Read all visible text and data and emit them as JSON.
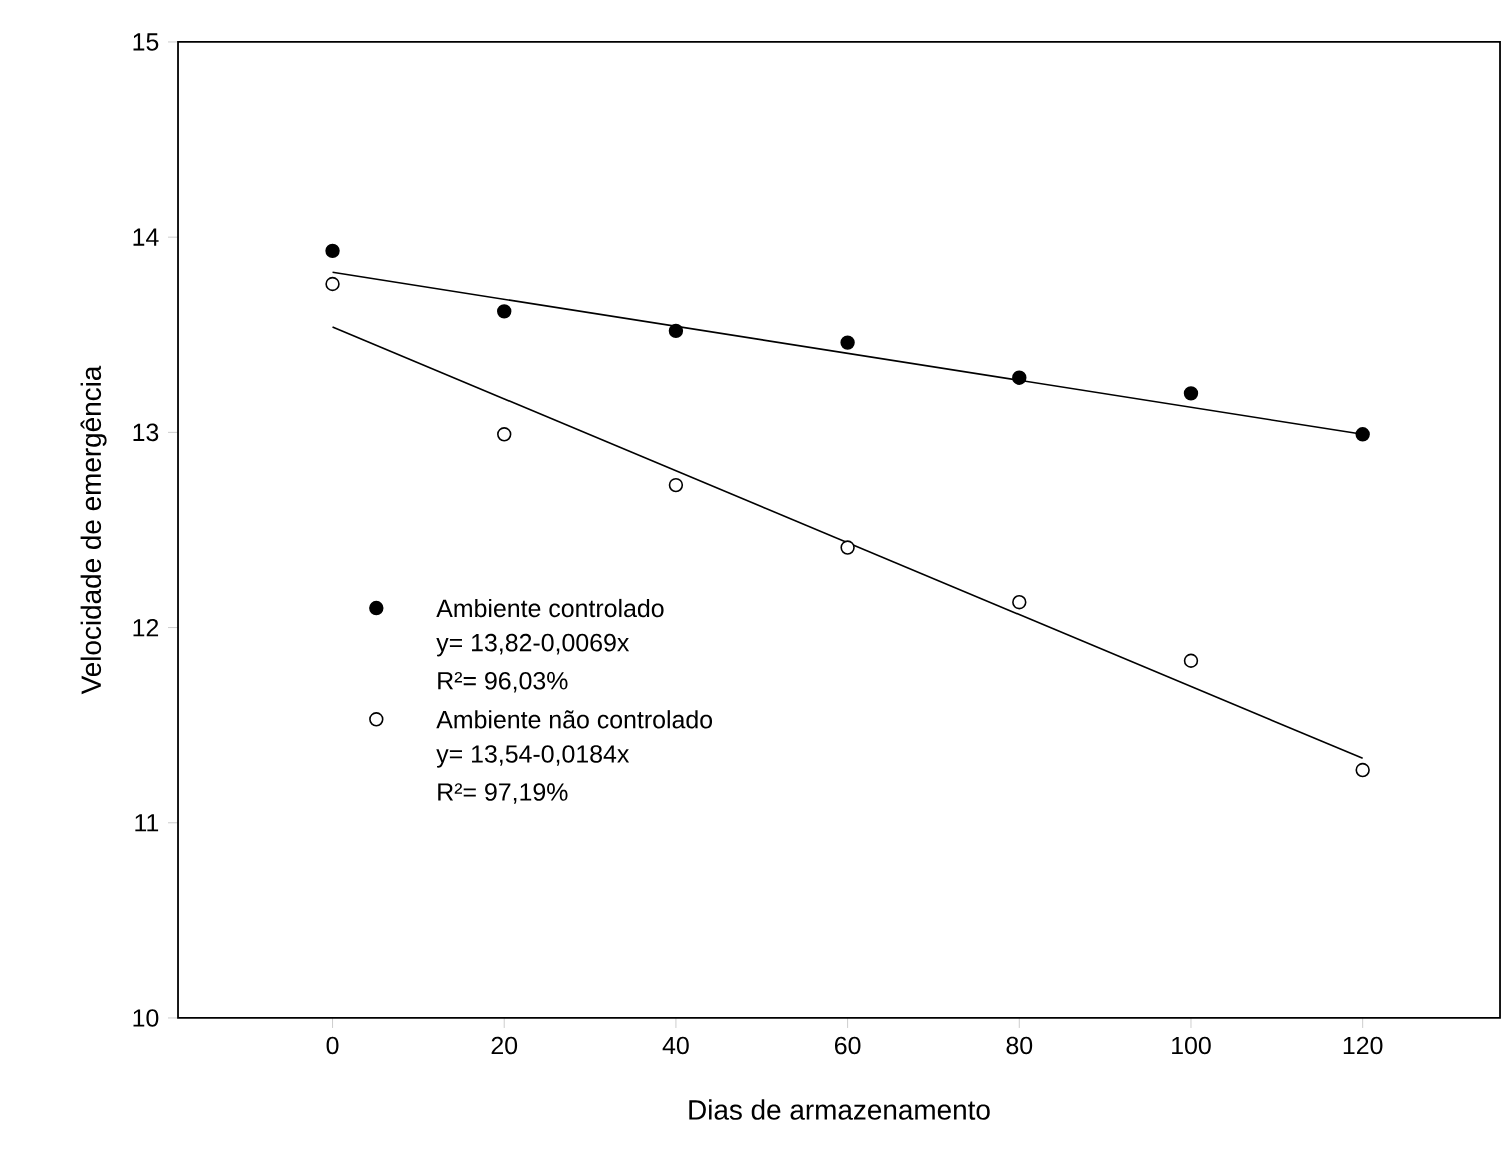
{
  "chart_data": {
    "type": "scatter",
    "xlabel": "Dias de armazenamento",
    "ylabel": "Velocidade de emergência",
    "xlim": [
      -18,
      136
    ],
    "xticks": [
      0,
      20,
      40,
      60,
      80,
      100,
      120
    ],
    "ylim": [
      10,
      15
    ],
    "yticks": [
      10,
      11,
      12,
      13,
      14,
      15
    ],
    "marker": "circle",
    "legend": "bottom left",
    "grid": false,
    "series": [
      {
        "name": "Ambiente controlado",
        "color": "#000000",
        "x": [
          0,
          20,
          40,
          60,
          80,
          100,
          120
        ],
        "values": [
          13.93,
          13.62,
          13.52,
          13.46,
          13.28,
          13.2,
          12.99
        ]
      },
      {
        "name": "Ambiente não controlado",
        "color": "#ffffff",
        "x": [
          0,
          20,
          40,
          60,
          80,
          100,
          120
        ],
        "values": [
          13.76,
          12.99,
          12.73,
          12.41,
          12.13,
          11.83,
          11.27
        ]
      },
      {
        "type": "line",
        "marker": "none",
        "color": "#000000",
        "x": [
          0,
          120
        ],
        "values": [
          13.82,
          12.99
        ]
      },
      {
        "type": "line",
        "marker": "none",
        "color": "#000000",
        "x": [
          0,
          120
        ],
        "values": [
          13.54,
          11.33
        ]
      }
    ],
    "annotations": [
      "y= 13,82-0,0069x",
      "R²= 96,03%",
      "y= 13,54-0,0184x",
      "R²= 97,19%"
    ]
  }
}
